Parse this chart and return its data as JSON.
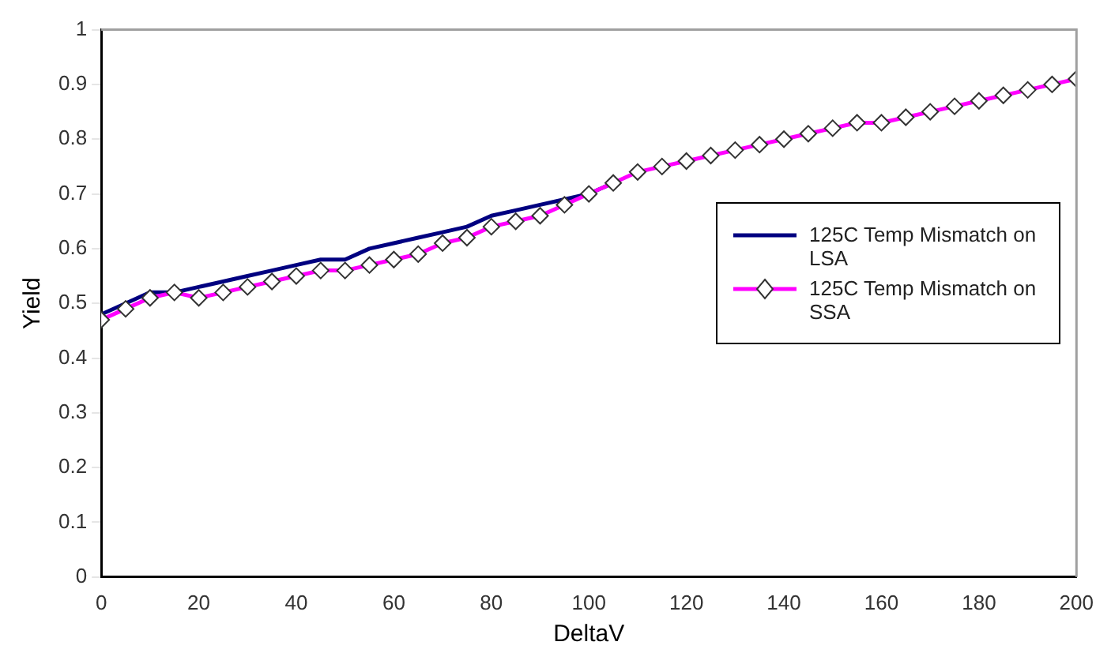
{
  "chart_data": {
    "type": "line",
    "xlabel": "DeltaV",
    "ylabel": "Yield",
    "x": [
      0,
      5,
      10,
      15,
      20,
      25,
      30,
      35,
      40,
      45,
      50,
      55,
      60,
      65,
      70,
      75,
      80,
      85,
      90,
      95,
      100,
      105,
      110,
      115,
      120,
      125,
      130,
      135,
      140,
      145,
      150,
      155,
      160,
      165,
      170,
      175,
      180,
      185,
      190,
      195,
      200
    ],
    "series": [
      {
        "name": "125C Temp Mismatch on LSA",
        "color": "#000080",
        "marker": "none",
        "values": [
          0.48,
          0.5,
          0.52,
          0.52,
          0.53,
          0.54,
          0.55,
          0.56,
          0.57,
          0.58,
          0.58,
          0.6,
          0.61,
          0.62,
          0.63,
          0.64,
          0.66,
          0.67,
          0.68,
          0.69,
          0.7,
          0.72,
          null,
          null,
          null,
          null,
          null,
          null,
          null,
          null,
          null,
          null,
          null,
          null,
          null,
          null,
          null,
          null,
          null,
          null,
          null
        ]
      },
      {
        "name": "125C Temp Mismatch on SSA",
        "color": "#ff00ff",
        "marker": "diamond",
        "values": [
          0.47,
          0.49,
          0.51,
          0.52,
          0.51,
          0.52,
          0.53,
          0.54,
          0.55,
          0.56,
          0.56,
          0.57,
          0.58,
          0.59,
          0.61,
          0.62,
          0.64,
          0.65,
          0.66,
          0.68,
          0.7,
          0.72,
          0.74,
          0.75,
          0.76,
          0.77,
          0.78,
          0.79,
          0.8,
          0.81,
          0.82,
          0.83,
          0.83,
          0.84,
          0.85,
          0.86,
          0.87,
          0.88,
          0.89,
          0.9,
          0.91
        ]
      }
    ],
    "xlim": [
      0,
      200
    ],
    "xticks": [
      0,
      20,
      40,
      60,
      80,
      100,
      120,
      140,
      160,
      180,
      200
    ],
    "ylim": [
      0,
      1
    ],
    "yticks": [
      0,
      0.1,
      0.2,
      0.3,
      0.4,
      0.5,
      0.6,
      0.7,
      0.8,
      0.9,
      1
    ],
    "grid": false,
    "legend": "right"
  }
}
